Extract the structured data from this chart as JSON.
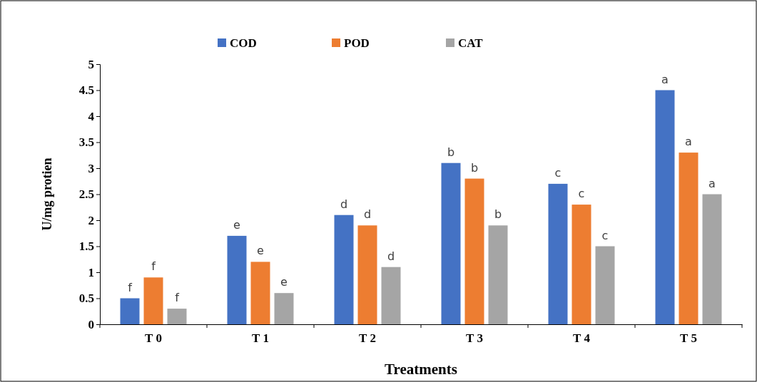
{
  "chart_data": {
    "type": "bar",
    "xlabel": "Treatments",
    "ylabel": "U/mg protien",
    "categories": [
      "T 0",
      "T 1",
      "T 2",
      "T 3",
      "T 4",
      "T 5"
    ],
    "series": [
      {
        "name": "COD",
        "color": "#4472c4",
        "values": [
          0.5,
          1.7,
          2.1,
          3.1,
          2.7,
          4.5
        ],
        "value_labels": [
          "f",
          "e",
          "d",
          "b",
          "c",
          "a"
        ]
      },
      {
        "name": "POD",
        "color": "#ed7d31",
        "values": [
          0.9,
          1.2,
          1.9,
          2.8,
          2.3,
          3.3
        ],
        "value_labels": [
          "f",
          "e",
          "d",
          "b",
          "c",
          "a"
        ]
      },
      {
        "name": "CAT",
        "color": "#a5a5a5",
        "values": [
          0.3,
          0.6,
          1.1,
          1.9,
          1.5,
          2.5
        ],
        "value_labels": [
          "f",
          "e",
          "d",
          "b",
          "c",
          "a"
        ]
      }
    ],
    "ylim": [
      0,
      5
    ],
    "yticks": [
      0,
      0.5,
      1,
      1.5,
      2,
      2.5,
      3,
      3.5,
      4,
      4.5,
      5
    ],
    "legend": "top"
  }
}
